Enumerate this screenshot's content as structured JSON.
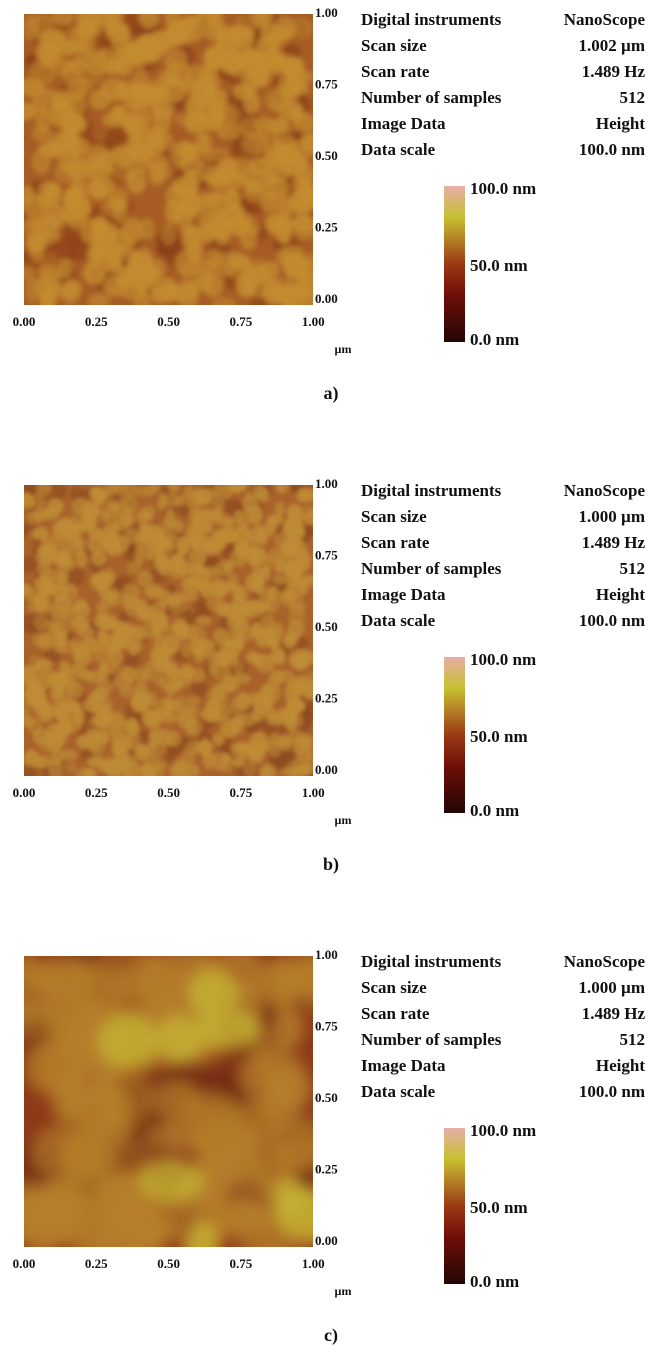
{
  "panels": [
    {
      "label": "a)",
      "x_ticks": [
        "0.00",
        "0.25",
        "0.50",
        "0.75",
        "1.00"
      ],
      "y_ticks": [
        "1.00",
        "0.75",
        "0.50",
        "0.25",
        "0.00"
      ],
      "unit": "µm",
      "info": [
        [
          "Digital instruments",
          "NanoScope"
        ],
        [
          "Scan size",
          "1.002 µm"
        ],
        [
          "Scan rate",
          "1.489 Hz"
        ],
        [
          "Number of samples",
          "512"
        ],
        [
          "Image Data",
          "Height"
        ],
        [
          "Data scale",
          "100.0 nm"
        ]
      ],
      "colorbar": [
        "100.0 nm",
        "50.0 nm",
        "0.0 nm"
      ]
    },
    {
      "label": "b)",
      "x_ticks": [
        "0.00",
        "0.25",
        "0.50",
        "0.75",
        "1.00"
      ],
      "y_ticks": [
        "1.00",
        "0.75",
        "0.50",
        "0.25",
        "0.00"
      ],
      "unit": "µm",
      "info": [
        [
          "Digital instruments",
          "NanoScope"
        ],
        [
          "Scan size",
          "1.000 µm"
        ],
        [
          "Scan rate",
          "1.489 Hz"
        ],
        [
          "Number of samples",
          "512"
        ],
        [
          "Image Data",
          "Height"
        ],
        [
          "Data scale",
          "100.0 nm"
        ]
      ],
      "colorbar": [
        "100.0 nm",
        "50.0 nm",
        "0.0 nm"
      ]
    },
    {
      "label": "c)",
      "x_ticks": [
        "0.00",
        "0.25",
        "0.50",
        "0.75",
        "1.00"
      ],
      "y_ticks": [
        "1.00",
        "0.75",
        "0.50",
        "0.25",
        "0.00"
      ],
      "unit": "µm",
      "info": [
        [
          "Digital instruments",
          "NanoScope"
        ],
        [
          "Scan size",
          "1.000 µm"
        ],
        [
          "Scan rate",
          "1.489 Hz"
        ],
        [
          "Number of samples",
          "512"
        ],
        [
          "Image Data",
          "Height"
        ],
        [
          "Data scale",
          "100.0 nm"
        ]
      ],
      "colorbar": [
        "100.0 nm",
        "50.0 nm",
        "0.0 nm"
      ]
    }
  ]
}
